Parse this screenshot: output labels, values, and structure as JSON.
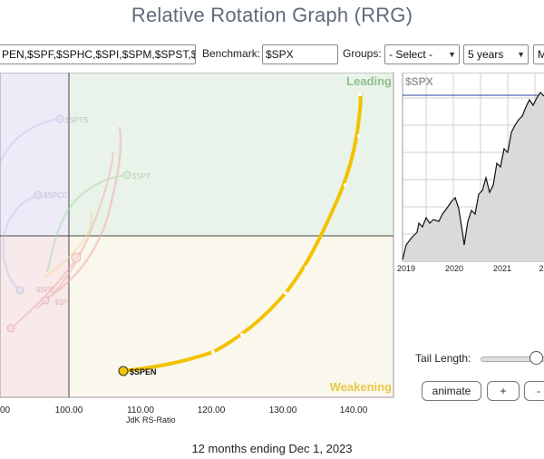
{
  "page": {
    "title": "Relative Rotation Graph (RRG)"
  },
  "controls": {
    "symbols_value": "PEN,$SPF,$SPHC,$SPI,$SPM,$SPST,$",
    "benchmark_label": "Benchmark:",
    "benchmark_value": "$SPX",
    "groups_label": "Groups:",
    "groups_selected": "- Select -",
    "period_selected": "5 years",
    "extra_selected": "M"
  },
  "rrg": {
    "quadrant_labels": {
      "leading": "Leading",
      "weakening": "Weakening"
    },
    "x_axis_title": "JdK RS-Ratio",
    "x_ticks": [
      "00",
      "100.00",
      "110.00",
      "120.00",
      "130.00",
      "140.00"
    ],
    "highlighted_symbol": "$SPEN",
    "ghost_labels": [
      "$SPTS",
      "$SPT",
      "$SPCC",
      "$SPE",
      "$SP"
    ],
    "colors": {
      "leading_bg": "#e9f3e9",
      "weakening_bg": "#faf8ec",
      "improving_bg": "#ecebf7",
      "lagging_bg": "#f8e9ea",
      "highlight_tail": "#f2c200"
    }
  },
  "spx_chart": {
    "label": "$SPX",
    "x_ticks": [
      "2019",
      "2020",
      "2021",
      "2"
    ]
  },
  "tail": {
    "label": "Tail Length:"
  },
  "buttons": {
    "animate": "animate",
    "plus": "+",
    "minus": "-"
  },
  "footer": {
    "text": "12 months ending Dec 1, 2023"
  }
}
